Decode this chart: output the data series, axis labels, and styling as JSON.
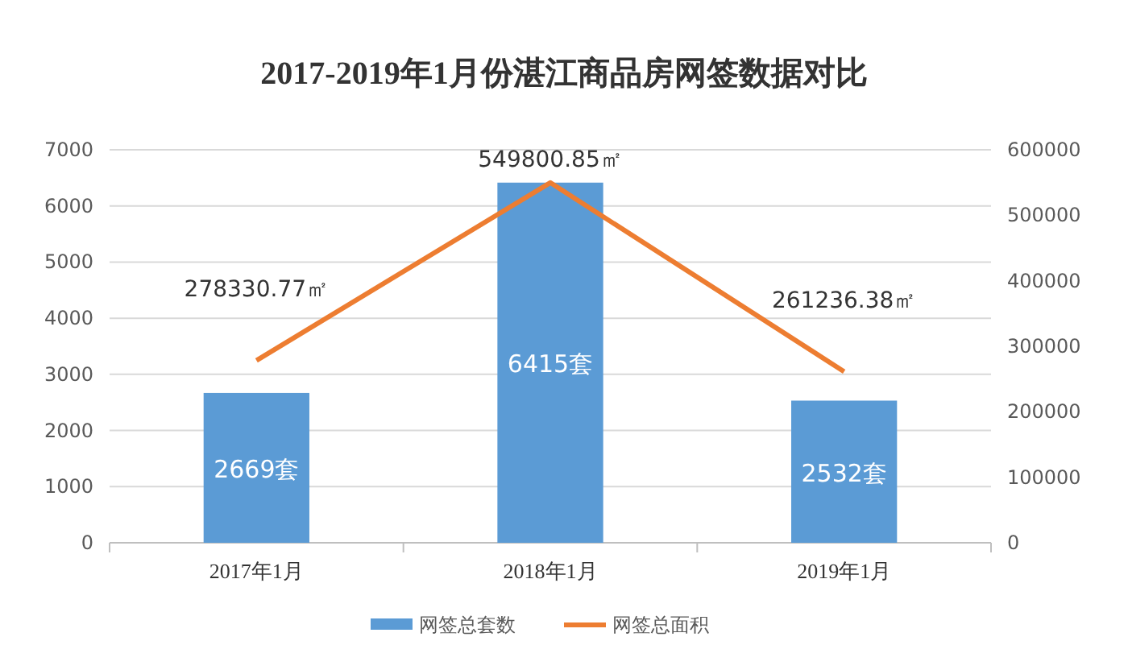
{
  "chart_data": {
    "type": "bar",
    "title": "2017-2019年1月份湛江商品房网签数据对比",
    "categories": [
      "2017年1月",
      "2018年1月",
      "2019年1月"
    ],
    "series": [
      {
        "name": "网签总套数",
        "color": "#5b9bd5",
        "values": [
          2669,
          6415,
          2532
        ],
        "value_labels": [
          "2669套",
          "6415套",
          "2532套"
        ]
      },
      {
        "name": "网签总面积",
        "type": "line",
        "axis": "y2",
        "color": "#ed7d31",
        "values": [
          278330.77,
          549800.85,
          261236.38
        ],
        "value_labels": [
          "278330.77㎡",
          "549800.85㎡",
          "261236.38㎡"
        ]
      }
    ],
    "ylim": [
      0,
      7000
    ],
    "yticks": [
      0,
      1000,
      2000,
      3000,
      4000,
      5000,
      6000,
      7000
    ],
    "y2lim": [
      0,
      600000
    ],
    "y2ticks": [
      0,
      100000,
      200000,
      300000,
      400000,
      500000,
      600000
    ],
    "grid": "y",
    "legend": "bottom"
  }
}
